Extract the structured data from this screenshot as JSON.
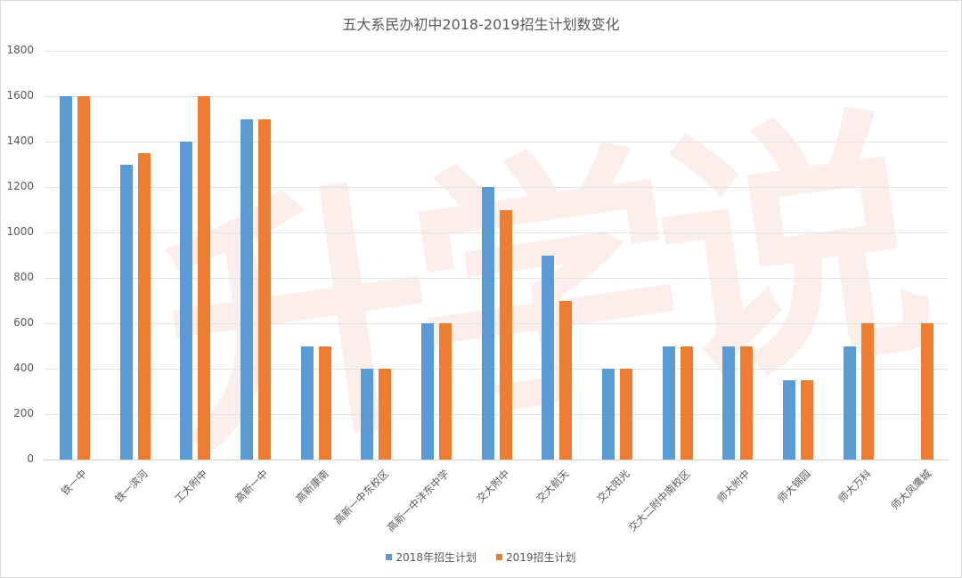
{
  "chart_data": {
    "type": "bar",
    "title": "五大系民办初中2018-2019招生计划数变化",
    "xlabel": "",
    "ylabel": "",
    "ylim": [
      0,
      1800
    ],
    "yticks": [
      0,
      200,
      400,
      600,
      800,
      1000,
      1200,
      1400,
      1600,
      1800
    ],
    "grid": true,
    "legend_position": "bottom",
    "categories": [
      "铁一中",
      "铁一滨河",
      "工大附中",
      "高新一中",
      "高新康南",
      "高新一中东校区",
      "高新一中沣东中学",
      "交大附中",
      "交大航天",
      "交大阳光",
      "交大二附中南校区",
      "师大附中",
      "师大锦园",
      "师大万科",
      "师大凤鹰城"
    ],
    "series": [
      {
        "name": "2018年招生计划",
        "color": "#5b9bd5",
        "values": [
          1600,
          1300,
          1400,
          1500,
          500,
          400,
          600,
          1200,
          900,
          400,
          500,
          500,
          350,
          500,
          0
        ]
      },
      {
        "name": "2019招生计划",
        "color": "#ed7d31",
        "values": [
          1600,
          1350,
          1600,
          1500,
          500,
          400,
          600,
          1100,
          700,
          400,
          500,
          500,
          350,
          600,
          600
        ]
      }
    ]
  },
  "watermark": "升学说"
}
